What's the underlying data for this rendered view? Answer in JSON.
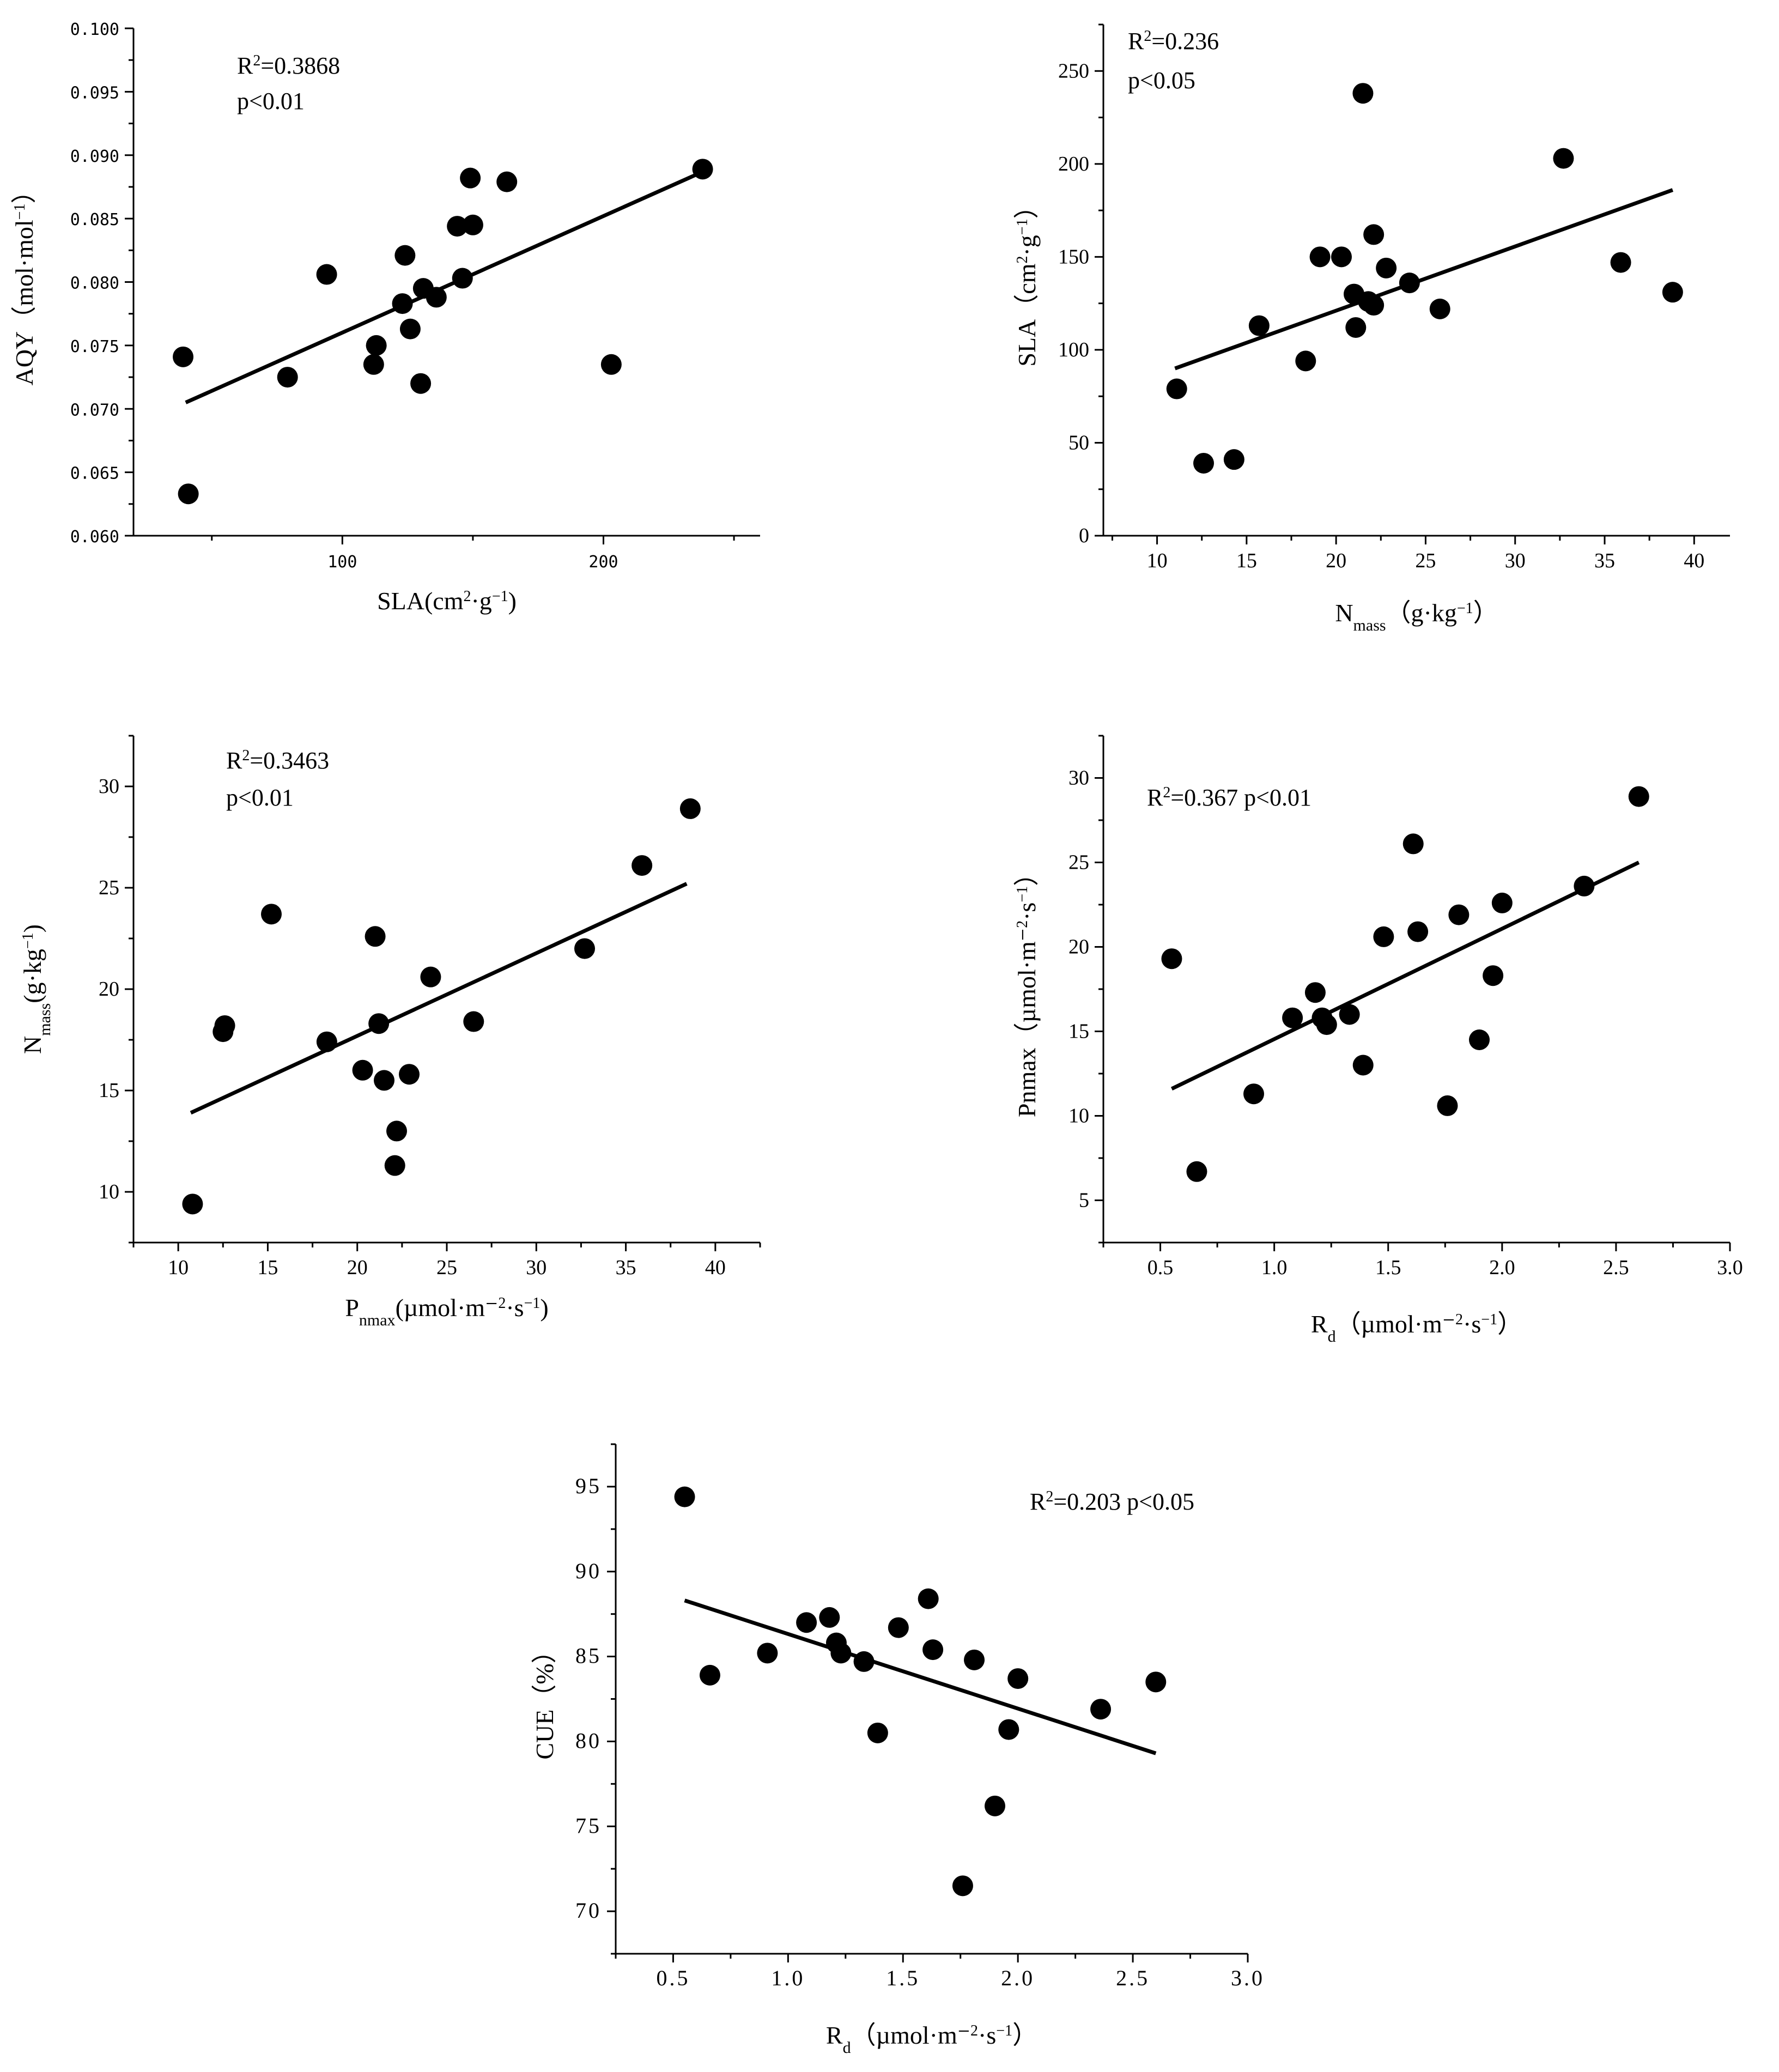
{
  "chart_data": [
    {
      "type": "scatter",
      "title": "",
      "xlabel": "SLA(cm²·g⁻¹)",
      "ylabel": "AQY（mol·mol⁻¹）",
      "xlim": [
        20,
        260
      ],
      "ylim": [
        0.06,
        0.1
      ],
      "xticks": [
        "100",
        "200"
      ],
      "yticks": [
        "0.060",
        "0.065",
        "0.070",
        "0.075",
        "0.080",
        "0.085",
        "0.090",
        "0.095",
        "0.100"
      ],
      "annotation": [
        "R²=0.3868",
        "p<0.01"
      ],
      "x": [
        39,
        41,
        79,
        94,
        112,
        113,
        123,
        124,
        126,
        130,
        131,
        136,
        144,
        146,
        149,
        150,
        163,
        203,
        238
      ],
      "y": [
        0.0741,
        0.0633,
        0.0725,
        0.0806,
        0.0735,
        0.075,
        0.0783,
        0.0821,
        0.0763,
        0.072,
        0.0795,
        0.0788,
        0.0844,
        0.0803,
        0.0882,
        0.0845,
        0.0879,
        0.0735,
        0.0889
      ],
      "fit": {
        "x": [
          40,
          237
        ],
        "y": [
          0.0705,
          0.0886
        ]
      }
    },
    {
      "type": "scatter",
      "title": "",
      "xlabel": "Nmass（g·kg⁻¹）",
      "ylabel": "SLA（cm²·g⁻¹）",
      "xlim": [
        7,
        42
      ],
      "ylim": [
        0,
        275
      ],
      "xticks": [
        "10",
        "15",
        "20",
        "25",
        "30",
        "35",
        "40"
      ],
      "yticks": [
        "0",
        "50",
        "100",
        "150",
        "200",
        "250"
      ],
      "annotation": [
        "R²=0.236",
        "p<0.05"
      ],
      "x": [
        11.1,
        12.6,
        14.3,
        15.7,
        18.3,
        19.1,
        20.3,
        21.0,
        21.1,
        21.5,
        21.8,
        22.1,
        22.1,
        22.8,
        24.1,
        25.8,
        32.7,
        35.9,
        38.8
      ],
      "y": [
        79,
        39,
        41,
        113,
        94,
        150,
        150,
        130,
        112,
        238,
        126,
        162,
        124,
        144,
        136,
        122,
        203,
        147,
        131
      ],
      "fit": {
        "x": [
          11,
          38.8
        ],
        "y": [
          90,
          186
        ]
      }
    },
    {
      "type": "scatter",
      "title": "",
      "xlabel": "Pnmax(µmol·m⁻²·s⁻¹)",
      "ylabel": "Nmass(g·kg⁻¹)",
      "xlim": [
        7.5,
        42.5
      ],
      "ylim": [
        7.5,
        32.5
      ],
      "xticks": [
        "10",
        "15",
        "20",
        "25",
        "30",
        "35",
        "40"
      ],
      "yticks": [
        "10",
        "15",
        "20",
        "25",
        "30"
      ],
      "annotation": [
        "R²=0.3463",
        "p<0.01"
      ],
      "x": [
        10.8,
        12.5,
        12.6,
        15.2,
        18.3,
        20.3,
        21.0,
        21.2,
        21.5,
        22.1,
        22.2,
        22.9,
        24.1,
        26.5,
        32.7,
        35.9,
        38.6
      ],
      "y": [
        9.4,
        17.9,
        18.2,
        23.7,
        17.4,
        16.0,
        22.6,
        18.3,
        15.5,
        11.3,
        13.0,
        15.8,
        20.6,
        18.4,
        22.0,
        26.1,
        28.9
      ],
      "fit": {
        "x": [
          10.7,
          38.4
        ],
        "y": [
          13.9,
          25.2
        ]
      }
    },
    {
      "type": "scatter",
      "title": "",
      "xlabel": "Rd（µmol·m⁻²·s⁻¹）",
      "ylabel": "Pnmax（µmol·m⁻²·s⁻¹）",
      "xlim": [
        0.25,
        3.0
      ],
      "ylim": [
        2.5,
        32.5
      ],
      "xticks": [
        "0.5",
        "1.0",
        "1.5",
        "2.0",
        "2.5",
        "3.0"
      ],
      "yticks": [
        "5",
        "10",
        "15",
        "20",
        "25",
        "30"
      ],
      "annotation": [
        "R²=0.367 p<0.01"
      ],
      "x": [
        0.55,
        0.66,
        0.91,
        1.08,
        1.18,
        1.21,
        1.23,
        1.33,
        1.39,
        1.48,
        1.61,
        1.63,
        1.76,
        1.81,
        1.9,
        1.96,
        2.0,
        2.36,
        2.6
      ],
      "y": [
        19.3,
        6.7,
        11.3,
        15.8,
        17.3,
        15.8,
        15.4,
        16.0,
        13.0,
        20.6,
        26.1,
        20.9,
        10.6,
        21.9,
        14.5,
        18.3,
        22.6,
        23.6,
        28.9
      ],
      "fit": {
        "x": [
          0.55,
          2.6
        ],
        "y": [
          11.6,
          25.0
        ]
      }
    },
    {
      "type": "scatter",
      "title": "",
      "xlabel": "Rd（µmol·m⁻²·s⁻¹）",
      "ylabel": "CUE（%）",
      "xlim": [
        0.25,
        3.0
      ],
      "ylim": [
        67.5,
        97.5
      ],
      "xticks": [
        "0.5",
        "1.0",
        "1.5",
        "2.0",
        "2.5",
        "3.0"
      ],
      "yticks": [
        "70",
        "75",
        "80",
        "85",
        "90",
        "95"
      ],
      "annotation": [
        "R²=0.203 p<0.05"
      ],
      "x": [
        0.55,
        0.66,
        0.91,
        1.08,
        1.18,
        1.21,
        1.23,
        1.33,
        1.39,
        1.48,
        1.61,
        1.63,
        1.76,
        1.81,
        1.96,
        2.0,
        2.36,
        2.6,
        1.9
      ],
      "y": [
        94.4,
        83.9,
        85.2,
        87.0,
        87.3,
        85.8,
        85.2,
        84.7,
        80.5,
        86.7,
        88.4,
        85.4,
        71.5,
        84.8,
        80.7,
        83.7,
        81.9,
        83.5,
        76.2
      ],
      "fit": {
        "x": [
          0.55,
          2.6
        ],
        "y": [
          88.3,
          79.3
        ]
      }
    }
  ]
}
